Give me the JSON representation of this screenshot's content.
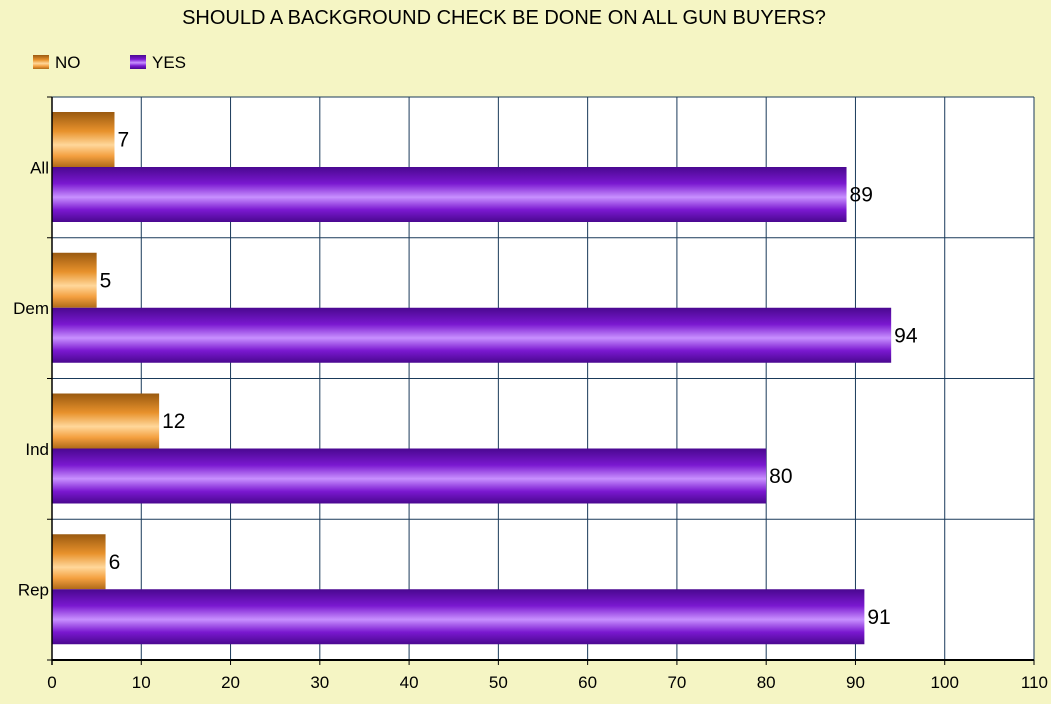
{
  "chart_data": {
    "type": "bar",
    "orientation": "horizontal",
    "title": "SHOULD A BACKGROUND CHECK BE DONE ON ALL GUN BUYERS?",
    "categories": [
      "All",
      "Dem",
      "Ind",
      "Rep"
    ],
    "series": [
      {
        "name": "NO",
        "values": [
          7,
          5,
          12,
          6
        ],
        "color": "#f09a30"
      },
      {
        "name": "YES",
        "values": [
          89,
          94,
          80,
          91
        ],
        "color": "#7010c0"
      }
    ],
    "xlim": [
      0,
      110
    ],
    "xticks": [
      0,
      10,
      20,
      30,
      40,
      50,
      60,
      70,
      80,
      90,
      100,
      110
    ],
    "grid": true,
    "legend": "top-left"
  },
  "colors": {
    "background": "#f5f5c4",
    "plot_area": "#ffffff",
    "gridline": "#1a3a5a"
  }
}
